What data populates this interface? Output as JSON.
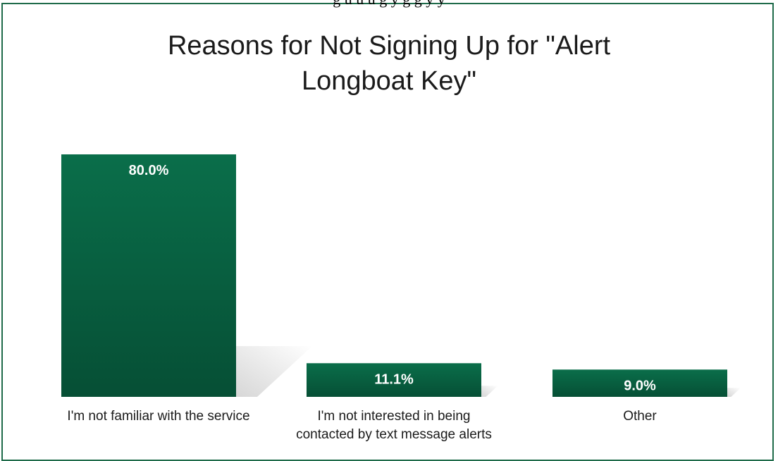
{
  "caption_fragment": "g u   u   u   g   y   g   g   y   y",
  "chart_data": {
    "type": "bar",
    "title_lines": [
      "Reasons for Not Signing Up for \"Alert",
      "Longboat Key\""
    ],
    "categories": [
      [
        "I'm not familiar with the service"
      ],
      [
        "I'm not interested in being",
        "contacted by text message alerts"
      ],
      [
        "Other"
      ]
    ],
    "values": [
      80.0,
      11.1,
      9.0
    ],
    "value_labels": [
      "80.0%",
      "11.1%",
      "9.0%"
    ],
    "ylim": [
      0,
      100
    ],
    "grid": false,
    "legend": "none",
    "colors": {
      "bar_top": "#0a6e4a",
      "bar_bottom": "#064f35",
      "label": "#ffffff",
      "shadow": "#bfbfbf",
      "border": "#1f6b4a"
    }
  }
}
